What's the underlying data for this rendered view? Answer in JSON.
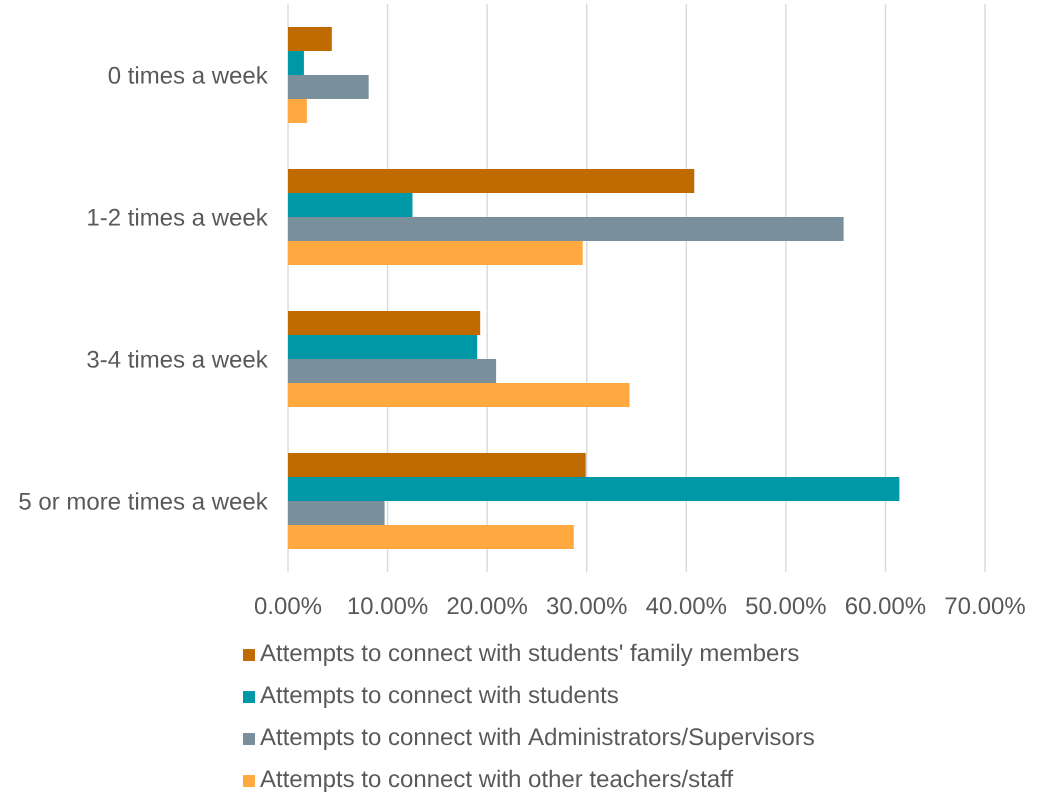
{
  "chart_data": {
    "type": "bar",
    "orientation": "horizontal",
    "categories": [
      "0 times a week",
      "1-2 times a week",
      "3-4 times a week",
      "5 or more times a week"
    ],
    "series": [
      {
        "name": "Attempts to connect with students' family members",
        "color": "#c06b00",
        "values": [
          4.4,
          40.8,
          19.3,
          29.9
        ]
      },
      {
        "name": "Attempts to connect with students",
        "color": "#0097a7",
        "values": [
          1.6,
          12.5,
          19.0,
          61.4
        ]
      },
      {
        "name": "Attempts to connect with Administrators/Supervisors",
        "color": "#798f9b",
        "values": [
          8.1,
          55.8,
          20.9,
          9.7
        ]
      },
      {
        "name": "Attempts to connect with other teachers/staff",
        "color": "#ffa940",
        "values": [
          1.9,
          29.6,
          34.3,
          28.7
        ]
      }
    ],
    "xlim": [
      0,
      70
    ],
    "xticks": [
      {
        "value": 0,
        "label": "0.00%"
      },
      {
        "value": 10,
        "label": "10.00%"
      },
      {
        "value": 20,
        "label": "20.00%"
      },
      {
        "value": 30,
        "label": "30.00%"
      },
      {
        "value": 40,
        "label": "40.00%"
      },
      {
        "value": 50,
        "label": "50.00%"
      },
      {
        "value": 60,
        "label": "60.00%"
      },
      {
        "value": 70,
        "label": "70.00%"
      }
    ],
    "grid": "x",
    "legend": "bottom"
  }
}
